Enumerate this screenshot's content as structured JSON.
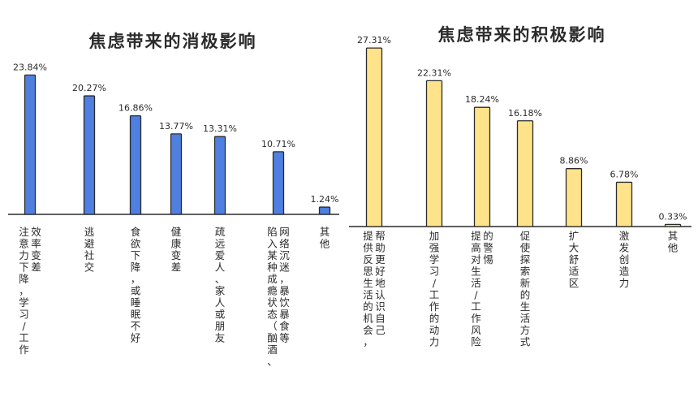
{
  "chart_data": [
    {
      "type": "bar",
      "title": "焦虑带来的消极影响",
      "color": "#4F7FE0",
      "categories": [
        [
          "效率变差",
          "注意力下降，学习/工作"
        ],
        [
          "逃避社交"
        ],
        [
          "食欲下降，或睡眠不好"
        ],
        [
          "健康变差"
        ],
        [
          "疏远爱人、家人或朋友"
        ],
        [
          "网络沉迷，暴饮暴食等",
          "陷入某种成瘾状态（酗酒、"
        ],
        [
          "其他"
        ]
      ],
      "values": [
        23.84,
        20.27,
        16.86,
        13.77,
        13.31,
        10.71,
        1.24
      ],
      "value_labels": [
        "23.84%",
        "20.27%",
        "16.86%",
        "13.77%",
        "13.31%",
        "10.71%",
        "1.24%"
      ],
      "ylim": [
        0,
        30
      ]
    },
    {
      "type": "bar",
      "title": "焦虑带来的积极影响",
      "color": "#FFE38A",
      "categories": [
        [
          "帮助更好地认识自己",
          "提供反思生活的机会，"
        ],
        [
          "加强学习/工作的动力"
        ],
        [
          "的警惕",
          "提高对生活/工作风险"
        ],
        [
          "促使探索新的生活方式"
        ],
        [
          "扩大舒适区"
        ],
        [
          "激发创造力"
        ],
        [
          "其他"
        ]
      ],
      "values": [
        27.31,
        22.31,
        18.24,
        16.18,
        8.86,
        6.78,
        0.33
      ],
      "value_labels": [
        "27.31%",
        "22.31%",
        "18.24%",
        "16.18%",
        "8.86%",
        "6.78%",
        "0.33%"
      ],
      "ylim": [
        0,
        30
      ]
    }
  ]
}
